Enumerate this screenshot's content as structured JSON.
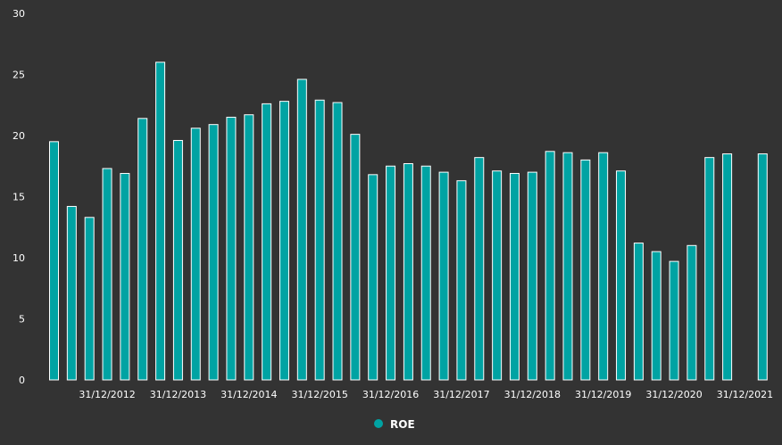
{
  "chart_data": {
    "type": "bar",
    "title": "",
    "xlabel": "",
    "ylabel": "",
    "ylim": [
      0,
      30
    ],
    "y_ticks": [
      0,
      5,
      10,
      15,
      20,
      25,
      30
    ],
    "x_tick_labels": [
      "31/12/2012",
      "31/12/2013",
      "31/12/2014",
      "31/12/2015",
      "31/12/2016",
      "31/12/2017",
      "31/12/2018",
      "31/12/2019",
      "31/12/2020",
      "31/12/2021"
    ],
    "grid": false,
    "legend_position": "bottom",
    "series": [
      {
        "name": "ROE",
        "color": "#00A3A3",
        "values": [
          19.5,
          14.2,
          13.3,
          17.3,
          16.9,
          21.4,
          26.0,
          19.6,
          20.6,
          20.9,
          21.5,
          21.7,
          22.6,
          22.8,
          24.6,
          22.9,
          22.7,
          20.1,
          16.8,
          17.5,
          17.7,
          17.5,
          17.0,
          16.3,
          18.2,
          17.1,
          16.9,
          17.0,
          18.7,
          18.6,
          18.0,
          18.6,
          17.1,
          11.2,
          10.5,
          9.7,
          11.0,
          18.2,
          18.5,
          null,
          18.5
        ]
      }
    ]
  }
}
